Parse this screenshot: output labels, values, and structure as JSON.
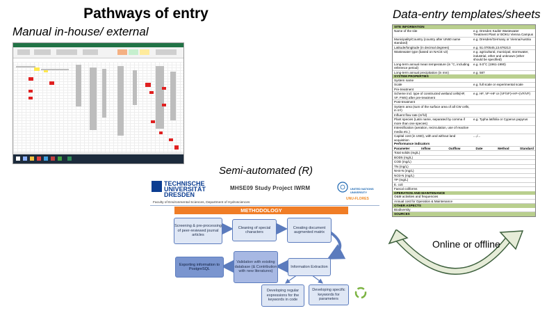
{
  "title": "Pathways of entry",
  "manual_label": "Manual in-house/ external",
  "semi_label": "Semi-automated (R)",
  "data_entry_label": "Data-entry templates/sheets",
  "online_label": "Online or offline",
  "sheet": {
    "sections": {
      "site": "SITE INFORMATION",
      "system": "SYSTEM PROPERTIES",
      "om": "OPERATION AND MAINTENANCE",
      "other": "OTHER ASPECTS",
      "sources": "SOURCES"
    },
    "site_rows": [
      {
        "label": "Name of the site",
        "value": "e.g. Dresden Kaditz Wastewater Treatment Plant or BOKU Vienna Campus"
      },
      {
        "label": "Municipality/Country (country after UN60 name standard)",
        "value": "e.g. Dresden/Germany or Vienna/Austria"
      },
      {
        "label": "Latitude/longitude (in decimal degrees)",
        "value": "e.g. 51.070545,13.676213"
      },
      {
        "label": "Wastewater type (based on NACE v2)",
        "value": "e.g. agricultural, municipal, stormwater, industrial, other and unknown (other should be specified)"
      },
      {
        "label": "Long-term annual mean temperature (in °C, including reference period)",
        "value": "e.g. 9.0°C (1961-1990)"
      },
      {
        "label": "Long-term annual precipitation (in mm)",
        "value": "e.g. 587"
      }
    ],
    "system_rows": [
      {
        "label": "System name",
        "value": ""
      },
      {
        "label": "Scale",
        "value": "e.g. full scale or experimental scale"
      },
      {
        "label": "Pre-treatment",
        "value": ""
      },
      {
        "label": "Scheme incl. type of constructed wetland cells(HF, VF, FWS) after pre-treatment",
        "value": "e.g. HF, VF+HF or (VF/VF)+HF+(VF/VF)"
      },
      {
        "label": "Post-treatment",
        "value": ""
      },
      {
        "label": "System area (sum of the surface area of all CW cells, in m²)",
        "value": ""
      },
      {
        "label": "Influent flow rate (m³/d)",
        "value": ""
      },
      {
        "label": "Plant species (Latin name, separated by comma if more than one species)",
        "value": "e.g. Typha latifolia or Cyperus papyrus"
      },
      {
        "label": "Intensification (aeration, recirculation, use of reactive media etc.)",
        "value": ""
      },
      {
        "label": "Capital cost (in USD), with and without land acquisition",
        "value": "...,/..."
      }
    ],
    "perf_indicators": "Performance indicators",
    "perf_headers": [
      "Parameter",
      "Inflow",
      "Outflow",
      "Date",
      "Method",
      "Standard"
    ],
    "perf_params": [
      "Total solids (mg/L)",
      "BOD5 (mg/L)",
      "COD (mg/L)",
      "TN (mg/L)",
      "NH4-N (mg/L)",
      "NO3-N (mg/L)",
      "TP (mg/L)",
      "E. coli",
      "Faecal coliforms"
    ],
    "om_rows": [
      "O&M activities and frequencies",
      "Annual cost for Operation & Maintenance"
    ],
    "other_rows": [
      "Biodiversity"
    ]
  },
  "meth": {
    "uni_line1": "TECHNISCHE",
    "uni_line2": "UNIVERSITÄT",
    "uni_line3": "DRESDEN",
    "project": "MHSE09 Study Project IWRM",
    "unu_line1": "UNITED NATIONS",
    "unu_line2": "UNIVERSITY",
    "unu_flores": "UNU-FLORES",
    "faculty": "Faculty of Environmental Sciences, Department of Hydrosciences",
    "bar": "METHODOLOGY",
    "boxes": {
      "screening": "Screening & pre-processing of peer-reviewed journal articles",
      "cleaning": "Cleaning of special characters",
      "creating": "Creating document augmented matrix",
      "validation": "Validation with existing database (& Contribution with new literatures)",
      "extraction": "Information Extraction",
      "exporting": "Exporting information to PostgreSQL",
      "regex": "Developing regular expressions for the keywords in code",
      "keywords": "Developing specific keywords for parameters"
    }
  },
  "colors": {
    "orange": "#f07d26",
    "box_light": "#dfe7f5",
    "box_dark": "#7a95cf",
    "sheet_section": "#b9cf8e",
    "excel_green": "#217346"
  }
}
